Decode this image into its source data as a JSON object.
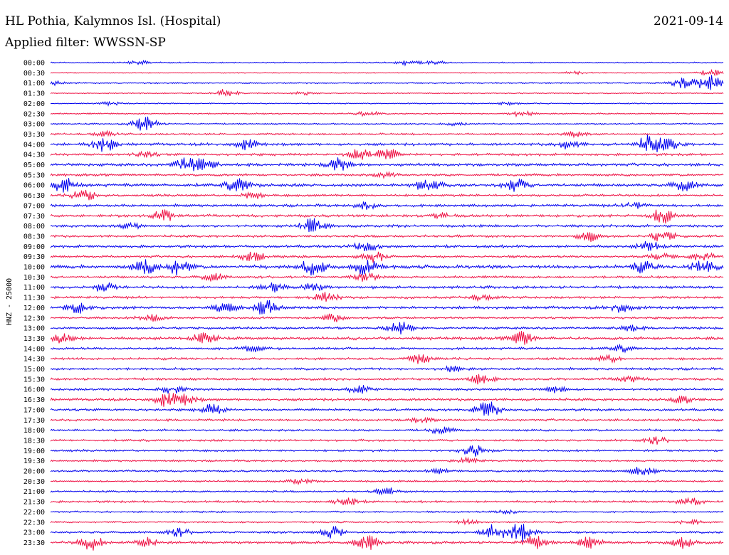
{
  "header": {
    "station": "HL Pothia, Kalymnos Isl. (Hospital)",
    "date": "2021-09-14",
    "filter": "Applied filter: WWSSN-SP"
  },
  "colors": {
    "blue": "#0000ee",
    "red": "#ee1144"
  },
  "chart_data": {
    "type": "line",
    "title": "",
    "xlabel": "",
    "ylabel": "HNZ - 25000",
    "grid": false,
    "legend": "none",
    "trace_minutes": 30,
    "row_colors": [
      "blue",
      "red"
    ],
    "rows": [
      {
        "label": "00:00",
        "noise": 0.5,
        "events": [
          [
            0.13,
            0.6
          ],
          [
            0.53,
            0.7
          ],
          [
            0.57,
            0.6
          ]
        ]
      },
      {
        "label": "00:30",
        "noise": 0.4,
        "events": [
          [
            0.78,
            0.5
          ],
          [
            0.98,
            1.2
          ]
        ]
      },
      {
        "label": "01:00",
        "noise": 0.6,
        "events": [
          [
            0.94,
            1.6
          ],
          [
            0.98,
            2.8
          ],
          [
            0.0,
            0.7
          ]
        ]
      },
      {
        "label": "01:30",
        "noise": 0.5,
        "events": [
          [
            0.26,
            1.2
          ],
          [
            0.38,
            0.5
          ]
        ]
      },
      {
        "label": "02:00",
        "noise": 0.5,
        "events": [
          [
            0.09,
            0.5
          ],
          [
            0.68,
            0.5
          ]
        ]
      },
      {
        "label": "02:30",
        "noise": 0.6,
        "events": [
          [
            0.47,
            0.8
          ],
          [
            0.7,
            0.8
          ]
        ]
      },
      {
        "label": "03:00",
        "noise": 0.6,
        "events": [
          [
            0.14,
            2.6
          ],
          [
            0.6,
            0.5
          ]
        ]
      },
      {
        "label": "03:30",
        "noise": 0.8,
        "events": [
          [
            0.08,
            0.7
          ],
          [
            0.78,
            0.8
          ]
        ]
      },
      {
        "label": "04:00",
        "noise": 1.1,
        "events": [
          [
            0.08,
            2.2
          ],
          [
            0.29,
            1.6
          ],
          [
            0.77,
            1.4
          ],
          [
            0.89,
            2.8
          ],
          [
            0.92,
            1.6
          ]
        ]
      },
      {
        "label": "04:30",
        "noise": 1.0,
        "events": [
          [
            0.46,
            1.9
          ],
          [
            0.5,
            1.8
          ],
          [
            0.14,
            0.8
          ]
        ]
      },
      {
        "label": "05:00",
        "noise": 1.2,
        "events": [
          [
            0.2,
            2.0
          ],
          [
            0.23,
            1.8
          ],
          [
            0.43,
            2.4
          ]
        ]
      },
      {
        "label": "05:30",
        "noise": 1.0,
        "events": [
          [
            0.5,
            0.8
          ]
        ]
      },
      {
        "label": "06:00",
        "noise": 1.3,
        "events": [
          [
            0.02,
            2.0
          ],
          [
            0.28,
            2.2
          ],
          [
            0.56,
            2.0
          ],
          [
            0.69,
            2.0
          ],
          [
            0.94,
            1.8
          ]
        ]
      },
      {
        "label": "06:30",
        "noise": 1.0,
        "events": [
          [
            0.05,
            1.7
          ],
          [
            0.3,
            0.9
          ]
        ]
      },
      {
        "label": "07:00",
        "noise": 1.1,
        "events": [
          [
            0.47,
            1.0
          ],
          [
            0.87,
            1.0
          ]
        ]
      },
      {
        "label": "07:30",
        "noise": 1.1,
        "events": [
          [
            0.17,
            1.8
          ],
          [
            0.91,
            2.4
          ],
          [
            0.58,
            0.8
          ]
        ]
      },
      {
        "label": "08:00",
        "noise": 1.1,
        "events": [
          [
            0.39,
            2.4
          ],
          [
            0.12,
            0.8
          ]
        ]
      },
      {
        "label": "08:30",
        "noise": 1.0,
        "events": [
          [
            0.8,
            1.5
          ],
          [
            0.91,
            1.8
          ]
        ]
      },
      {
        "label": "09:00",
        "noise": 1.1,
        "events": [
          [
            0.47,
            1.6
          ],
          [
            0.89,
            1.5
          ]
        ]
      },
      {
        "label": "09:30",
        "noise": 1.0,
        "events": [
          [
            0.3,
            1.5
          ],
          [
            0.48,
            1.9
          ],
          [
            0.91,
            1.4
          ],
          [
            0.97,
            1.2
          ]
        ]
      },
      {
        "label": "10:00",
        "noise": 1.4,
        "events": [
          [
            0.14,
            2.2
          ],
          [
            0.19,
            2.4
          ],
          [
            0.39,
            2.6
          ],
          [
            0.47,
            3.0
          ],
          [
            0.88,
            1.6
          ],
          [
            0.97,
            2.3
          ]
        ]
      },
      {
        "label": "10:30",
        "noise": 1.0,
        "events": [
          [
            0.24,
            1.2
          ],
          [
            0.47,
            1.2
          ]
        ]
      },
      {
        "label": "11:00",
        "noise": 1.1,
        "events": [
          [
            0.08,
            1.3
          ],
          [
            0.33,
            1.4
          ],
          [
            0.39,
            1.2
          ]
        ]
      },
      {
        "label": "11:30",
        "noise": 1.0,
        "events": [
          [
            0.41,
            1.5
          ],
          [
            0.64,
            0.9
          ]
        ]
      },
      {
        "label": "12:00",
        "noise": 1.2,
        "events": [
          [
            0.04,
            1.6
          ],
          [
            0.26,
            1.4
          ],
          [
            0.32,
            2.4
          ],
          [
            0.85,
            1.5
          ]
        ]
      },
      {
        "label": "12:30",
        "noise": 0.9,
        "events": [
          [
            0.15,
            1.0
          ],
          [
            0.42,
            1.2
          ]
        ]
      },
      {
        "label": "13:00",
        "noise": 1.0,
        "events": [
          [
            0.52,
            1.8
          ],
          [
            0.86,
            1.0
          ]
        ]
      },
      {
        "label": "13:30",
        "noise": 1.2,
        "events": [
          [
            0.02,
            1.8
          ],
          [
            0.23,
            1.8
          ],
          [
            0.7,
            2.0
          ]
        ]
      },
      {
        "label": "14:00",
        "noise": 1.0,
        "events": [
          [
            0.3,
            0.8
          ],
          [
            0.85,
            0.8
          ]
        ]
      },
      {
        "label": "14:30",
        "noise": 1.0,
        "events": [
          [
            0.55,
            1.4
          ],
          [
            0.83,
            1.0
          ]
        ]
      },
      {
        "label": "15:00",
        "noise": 1.0,
        "events": [
          [
            0.6,
            0.8
          ]
        ]
      },
      {
        "label": "15:30",
        "noise": 1.0,
        "events": [
          [
            0.64,
            1.7
          ],
          [
            0.86,
            0.8
          ]
        ]
      },
      {
        "label": "16:00",
        "noise": 1.0,
        "events": [
          [
            0.18,
            1.2
          ],
          [
            0.46,
            1.4
          ],
          [
            0.75,
            1.0
          ]
        ]
      },
      {
        "label": "16:30",
        "noise": 1.1,
        "events": [
          [
            0.17,
            2.0
          ],
          [
            0.2,
            1.6
          ],
          [
            0.94,
            1.2
          ]
        ]
      },
      {
        "label": "17:00",
        "noise": 1.0,
        "events": [
          [
            0.24,
            1.6
          ],
          [
            0.65,
            2.6
          ]
        ]
      },
      {
        "label": "17:30",
        "noise": 0.9,
        "events": [
          [
            0.55,
            0.8
          ]
        ]
      },
      {
        "label": "18:00",
        "noise": 0.9,
        "events": [
          [
            0.58,
            1.0
          ]
        ]
      },
      {
        "label": "18:30",
        "noise": 0.9,
        "events": [
          [
            0.9,
            1.0
          ]
        ]
      },
      {
        "label": "19:00",
        "noise": 0.9,
        "events": [
          [
            0.63,
            2.0
          ]
        ]
      },
      {
        "label": "19:30",
        "noise": 0.8,
        "events": [
          [
            0.62,
            0.8
          ]
        ]
      },
      {
        "label": "20:00",
        "noise": 0.8,
        "events": [
          [
            0.88,
            1.6
          ],
          [
            0.58,
            0.8
          ]
        ]
      },
      {
        "label": "20:30",
        "noise": 0.8,
        "events": [
          [
            0.37,
            0.7
          ]
        ]
      },
      {
        "label": "21:00",
        "noise": 0.8,
        "events": [
          [
            0.5,
            1.0
          ]
        ]
      },
      {
        "label": "21:30",
        "noise": 0.9,
        "events": [
          [
            0.44,
            1.4
          ],
          [
            0.95,
            1.2
          ]
        ]
      },
      {
        "label": "22:00",
        "noise": 0.7,
        "events": [
          [
            0.68,
            0.6
          ]
        ]
      },
      {
        "label": "22:30",
        "noise": 0.7,
        "events": [
          [
            0.62,
            0.7
          ],
          [
            0.95,
            0.7
          ]
        ]
      },
      {
        "label": "23:00",
        "noise": 0.9,
        "events": [
          [
            0.19,
            1.2
          ],
          [
            0.42,
            1.8
          ],
          [
            0.66,
            2.6
          ],
          [
            0.7,
            3.2
          ]
        ]
      },
      {
        "label": "23:30",
        "noise": 1.1,
        "events": [
          [
            0.06,
            2.2
          ],
          [
            0.14,
            1.6
          ],
          [
            0.47,
            2.2
          ],
          [
            0.72,
            2.0
          ],
          [
            0.8,
            1.6
          ],
          [
            0.94,
            1.6
          ]
        ]
      }
    ]
  }
}
